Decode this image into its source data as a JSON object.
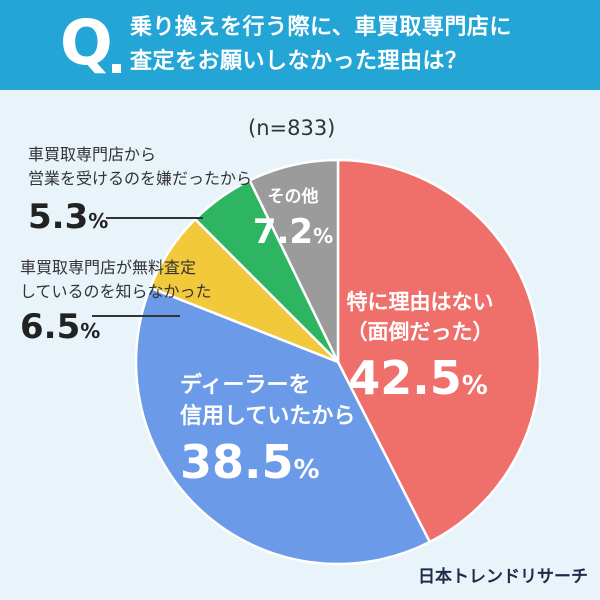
{
  "header": {
    "q_letter": "Q",
    "question_line1": "乗り換えを行う際に、車買取専門店に",
    "question_line2": "査定をお願いしなかった理由は？"
  },
  "sample_note": "(n=833)",
  "credit": "日本トレンドリサーチ",
  "chart_data": {
    "type": "pie",
    "title": "乗り換えを行う際に、車買取専門店に査定をお願いしなかった理由は？",
    "note": "(n=833)",
    "slices": [
      {
        "label_lines": [
          "特に理由はない",
          "（面倒だった）"
        ],
        "value": 42.5,
        "value_text": "42.5",
        "color": "#ef6f6b"
      },
      {
        "label_lines": [
          "ディーラーを",
          "信用していたから"
        ],
        "value": 38.5,
        "value_text": "38.5",
        "color": "#6b9be8"
      },
      {
        "label_lines": [
          "車買取専門店が無料査定",
          "しているのを知らなかった"
        ],
        "value": 6.5,
        "value_text": "6.5",
        "color": "#f3c93c"
      },
      {
        "label_lines": [
          "車買取専門店から",
          "営業を受けるのを嫌だったから"
        ],
        "value": 5.3,
        "value_text": "5.3",
        "color": "#2db562"
      },
      {
        "label_lines": [
          "その他"
        ],
        "value": 7.2,
        "value_text": "7.2",
        "color": "#9b9b9b"
      }
    ],
    "percent_sign": "%"
  }
}
